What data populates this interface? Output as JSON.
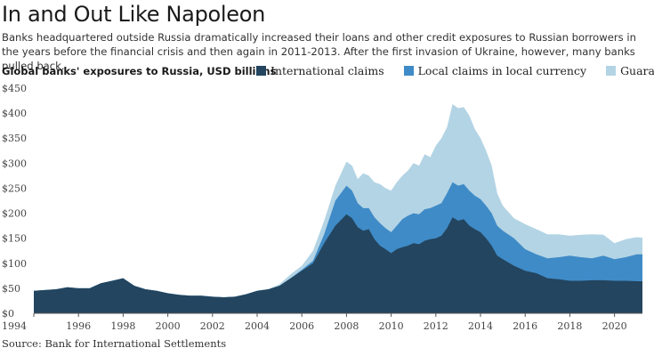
{
  "header": {
    "title": "In and Out Like Napoleon",
    "subtitle": "Banks headquartered outside Russia dramatically increased their loans and other credit exposures to Russian borrowers in the years before the financial crisis and then again in 2011-2013. After the first invasion of Ukraine, however, many banks pulled back."
  },
  "chart_title": "Global banks' exposures to Russia, USD billions",
  "source": "Source: Bank for International Settlements",
  "colors": {
    "international": "#23455f",
    "local": "#3f8bc7",
    "guarantees": "#b3d4e5",
    "axis": "#555555"
  },
  "chart_data": {
    "type": "area",
    "stacked": true,
    "title": "Global banks' exposures to Russia, USD billions",
    "xlabel": "",
    "ylabel": "",
    "xlim": [
      1994,
      2021.25
    ],
    "ylim": [
      0,
      450
    ],
    "y_ticks": [
      0,
      50,
      100,
      150,
      200,
      250,
      300,
      350,
      400,
      450
    ],
    "y_tick_labels": [
      "$0",
      "$50",
      "$100",
      "$150",
      "$200",
      "$250",
      "$300",
      "$350",
      "$400",
      "$450"
    ],
    "x_ticks": [
      1994,
      1996,
      1998,
      2000,
      2002,
      2004,
      2006,
      2008,
      2010,
      2012,
      2014,
      2016,
      2018,
      2020
    ],
    "x_tick_labels": [
      "1994",
      "1996",
      "1998",
      "2000",
      "2002",
      "2004",
      "2006",
      "2008",
      "2010",
      "2012",
      "2014",
      "2016",
      "2018",
      "2020"
    ],
    "legend_position": "top",
    "series": [
      {
        "name": "International claims",
        "key": "international",
        "points": [
          [
            1994,
            45
          ],
          [
            1995,
            48
          ],
          [
            1995.5,
            52
          ],
          [
            1996,
            50
          ],
          [
            1996.5,
            50
          ],
          [
            1997,
            60
          ],
          [
            1997.5,
            65
          ],
          [
            1998,
            70
          ],
          [
            1998.5,
            55
          ],
          [
            1999,
            48
          ],
          [
            1999.5,
            45
          ],
          [
            2000,
            40
          ],
          [
            2000.5,
            37
          ],
          [
            2001,
            35
          ],
          [
            2001.5,
            35
          ],
          [
            2002,
            33
          ],
          [
            2002.5,
            32
          ],
          [
            2003,
            33
          ],
          [
            2003.5,
            38
          ],
          [
            2004,
            45
          ],
          [
            2004.5,
            48
          ],
          [
            2005,
            55
          ],
          [
            2005.5,
            70
          ],
          [
            2006,
            85
          ],
          [
            2006.5,
            100
          ],
          [
            2007,
            140
          ],
          [
            2007.5,
            175
          ],
          [
            2008,
            198
          ],
          [
            2008.25,
            190
          ],
          [
            2008.5,
            172
          ],
          [
            2008.75,
            165
          ],
          [
            2009,
            168
          ],
          [
            2009.25,
            148
          ],
          [
            2009.5,
            135
          ],
          [
            2009.75,
            128
          ],
          [
            2010,
            120
          ],
          [
            2010.25,
            128
          ],
          [
            2010.5,
            132
          ],
          [
            2010.75,
            135
          ],
          [
            2011,
            140
          ],
          [
            2011.25,
            138
          ],
          [
            2011.5,
            145
          ],
          [
            2011.75,
            148
          ],
          [
            2012,
            150
          ],
          [
            2012.25,
            155
          ],
          [
            2012.5,
            170
          ],
          [
            2012.75,
            192
          ],
          [
            2013,
            185
          ],
          [
            2013.25,
            188
          ],
          [
            2013.5,
            175
          ],
          [
            2013.75,
            168
          ],
          [
            2014,
            162
          ],
          [
            2014.25,
            150
          ],
          [
            2014.5,
            135
          ],
          [
            2014.75,
            115
          ],
          [
            2015,
            108
          ],
          [
            2015.5,
            95
          ],
          [
            2016,
            85
          ],
          [
            2016.5,
            80
          ],
          [
            2017,
            70
          ],
          [
            2017.5,
            68
          ],
          [
            2018,
            65
          ],
          [
            2018.5,
            65
          ],
          [
            2019,
            66
          ],
          [
            2019.5,
            66
          ],
          [
            2020,
            65
          ],
          [
            2020.5,
            65
          ],
          [
            2021,
            64
          ],
          [
            2021.25,
            64
          ]
        ]
      },
      {
        "name": "Local claims in local currency",
        "key": "local",
        "points": [
          [
            1994,
            45
          ],
          [
            1995,
            48
          ],
          [
            1995.5,
            52
          ],
          [
            1996,
            50
          ],
          [
            1996.5,
            50
          ],
          [
            1997,
            60
          ],
          [
            1997.5,
            65
          ],
          [
            1998,
            70
          ],
          [
            1998.5,
            55
          ],
          [
            1999,
            48
          ],
          [
            1999.5,
            45
          ],
          [
            2000,
            40
          ],
          [
            2000.5,
            37
          ],
          [
            2001,
            35
          ],
          [
            2001.5,
            35
          ],
          [
            2002,
            33
          ],
          [
            2002.5,
            32
          ],
          [
            2003,
            33
          ],
          [
            2003.5,
            38
          ],
          [
            2004,
            45
          ],
          [
            2004.5,
            48
          ],
          [
            2005,
            55
          ],
          [
            2005.5,
            70
          ],
          [
            2006,
            87
          ],
          [
            2006.5,
            105
          ],
          [
            2007,
            158
          ],
          [
            2007.5,
            225
          ],
          [
            2008,
            255
          ],
          [
            2008.25,
            245
          ],
          [
            2008.5,
            220
          ],
          [
            2008.75,
            210
          ],
          [
            2009,
            210
          ],
          [
            2009.25,
            192
          ],
          [
            2009.5,
            180
          ],
          [
            2009.75,
            170
          ],
          [
            2010,
            162
          ],
          [
            2010.25,
            175
          ],
          [
            2010.5,
            188
          ],
          [
            2010.75,
            195
          ],
          [
            2011,
            200
          ],
          [
            2011.25,
            198
          ],
          [
            2011.5,
            208
          ],
          [
            2011.75,
            210
          ],
          [
            2012,
            215
          ],
          [
            2012.25,
            220
          ],
          [
            2012.5,
            240
          ],
          [
            2012.75,
            262
          ],
          [
            2013,
            255
          ],
          [
            2013.25,
            258
          ],
          [
            2013.5,
            245
          ],
          [
            2013.75,
            235
          ],
          [
            2014,
            228
          ],
          [
            2014.25,
            215
          ],
          [
            2014.5,
            200
          ],
          [
            2014.75,
            175
          ],
          [
            2015,
            165
          ],
          [
            2015.5,
            150
          ],
          [
            2016,
            128
          ],
          [
            2016.5,
            118
          ],
          [
            2017,
            110
          ],
          [
            2017.5,
            112
          ],
          [
            2018,
            115
          ],
          [
            2018.5,
            112
          ],
          [
            2019,
            110
          ],
          [
            2019.5,
            115
          ],
          [
            2020,
            108
          ],
          [
            2020.5,
            112
          ],
          [
            2021,
            118
          ],
          [
            2021.25,
            118
          ]
        ]
      },
      {
        "name": "Guarantees",
        "key": "guarantees",
        "points": [
          [
            1994,
            45
          ],
          [
            1995,
            48
          ],
          [
            1995.5,
            52
          ],
          [
            1996,
            50
          ],
          [
            1996.5,
            50
          ],
          [
            1997,
            60
          ],
          [
            1997.5,
            65
          ],
          [
            1998,
            70
          ],
          [
            1998.5,
            55
          ],
          [
            1999,
            48
          ],
          [
            1999.5,
            45
          ],
          [
            2000,
            40
          ],
          [
            2000.5,
            37
          ],
          [
            2001,
            35
          ],
          [
            2001.5,
            35
          ],
          [
            2002,
            33
          ],
          [
            2002.5,
            32
          ],
          [
            2003,
            33
          ],
          [
            2003.5,
            38
          ],
          [
            2004,
            45
          ],
          [
            2004.5,
            48
          ],
          [
            2005,
            58
          ],
          [
            2005.5,
            78
          ],
          [
            2006,
            95
          ],
          [
            2006.5,
            125
          ],
          [
            2007,
            185
          ],
          [
            2007.5,
            255
          ],
          [
            2008,
            303
          ],
          [
            2008.25,
            295
          ],
          [
            2008.5,
            268
          ],
          [
            2008.75,
            280
          ],
          [
            2009,
            275
          ],
          [
            2009.25,
            262
          ],
          [
            2009.5,
            258
          ],
          [
            2009.75,
            250
          ],
          [
            2010,
            245
          ],
          [
            2010.25,
            262
          ],
          [
            2010.5,
            275
          ],
          [
            2010.75,
            285
          ],
          [
            2011,
            300
          ],
          [
            2011.25,
            295
          ],
          [
            2011.5,
            318
          ],
          [
            2011.75,
            312
          ],
          [
            2012,
            335
          ],
          [
            2012.25,
            350
          ],
          [
            2012.5,
            372
          ],
          [
            2012.75,
            418
          ],
          [
            2013,
            410
          ],
          [
            2013.25,
            412
          ],
          [
            2013.5,
            395
          ],
          [
            2013.75,
            368
          ],
          [
            2014,
            350
          ],
          [
            2014.25,
            325
          ],
          [
            2014.5,
            295
          ],
          [
            2014.75,
            240
          ],
          [
            2015,
            215
          ],
          [
            2015.5,
            190
          ],
          [
            2016,
            178
          ],
          [
            2016.5,
            168
          ],
          [
            2017,
            158
          ],
          [
            2017.5,
            158
          ],
          [
            2018,
            155
          ],
          [
            2018.5,
            157
          ],
          [
            2019,
            158
          ],
          [
            2019.5,
            157
          ],
          [
            2020,
            140
          ],
          [
            2020.5,
            148
          ],
          [
            2021,
            152
          ],
          [
            2021.25,
            151
          ]
        ]
      }
    ],
    "note": "points are cumulative stacked totals (top edge of each band) in USD billions"
  }
}
